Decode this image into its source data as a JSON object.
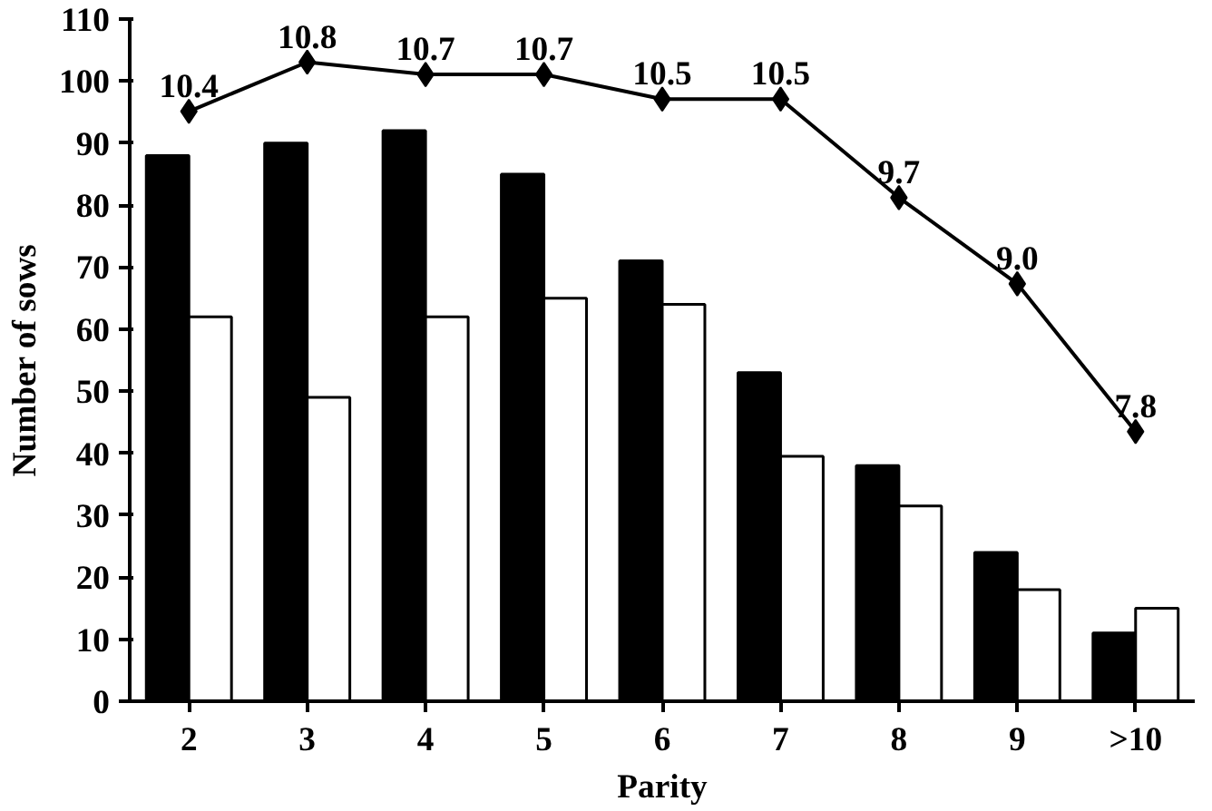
{
  "chart_data": {
    "type": "bar",
    "xlabel": "Parity",
    "ylabel": "Number of sows",
    "categories": [
      "2",
      "3",
      "4",
      "5",
      "6",
      "7",
      "8",
      "9",
      ">10"
    ],
    "ylim": [
      0,
      110
    ],
    "yticks": [
      0,
      10,
      20,
      30,
      40,
      50,
      60,
      70,
      80,
      90,
      100,
      110
    ],
    "y2lim": [
      5.61,
      11.15
    ],
    "grid": false,
    "series": [
      {
        "color": "#000000",
        "values": [
          88,
          90,
          92,
          85,
          71,
          53,
          38,
          24,
          11
        ]
      },
      {
        "color": "#ffffff",
        "values": [
          62,
          49,
          62,
          65,
          64,
          39.5,
          31.5,
          18,
          15
        ]
      },
      {
        "type": "line",
        "axis": "y2",
        "color": "#000000",
        "marker": "diamond",
        "line_style": "solid",
        "values": [
          10.4,
          10.8,
          10.7,
          10.7,
          10.5,
          10.5,
          9.7,
          9.0,
          7.8
        ],
        "value_labels": [
          "10.4",
          "10.8",
          "10.7",
          "10.7",
          "10.5",
          "10.5",
          "9.7",
          "9.0",
          "7.8"
        ]
      }
    ]
  }
}
